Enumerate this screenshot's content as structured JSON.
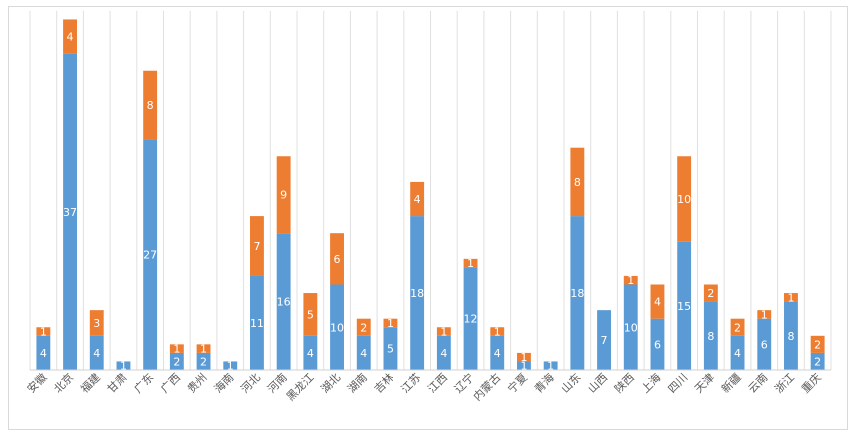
{
  "chart_data": {
    "type": "bar",
    "stacked": true,
    "title": "",
    "xlabel": "",
    "ylabel": "",
    "ylim": [
      0,
      42
    ],
    "grid": "vertical",
    "legend": "none",
    "categories": [
      "安徽",
      "北京",
      "福建",
      "甘肃",
      "广东",
      "广西",
      "贵州",
      "海南",
      "河北",
      "河南",
      "黑龙江",
      "湖北",
      "湖南",
      "吉林",
      "江苏",
      "江西",
      "辽宁",
      "内蒙古",
      "宁夏",
      "青海",
      "山东",
      "山西",
      "陕西",
      "上海",
      "四川",
      "天津",
      "新疆",
      "云南",
      "浙江",
      "重庆"
    ],
    "series": [
      {
        "color": "#5b9bd5",
        "values": [
          4,
          37,
          4,
          1,
          27,
          2,
          2,
          1,
          11,
          16,
          4,
          10,
          4,
          5,
          18,
          4,
          12,
          4,
          1,
          1,
          18,
          7,
          10,
          6,
          15,
          8,
          4,
          6,
          8,
          2
        ]
      },
      {
        "color": "#ed7d31",
        "values": [
          1,
          4,
          3,
          0,
          8,
          1,
          1,
          0,
          7,
          9,
          5,
          6,
          2,
          1,
          4,
          1,
          1,
          1,
          1,
          0,
          8,
          0,
          1,
          4,
          10,
          2,
          2,
          1,
          1,
          2
        ]
      }
    ]
  }
}
